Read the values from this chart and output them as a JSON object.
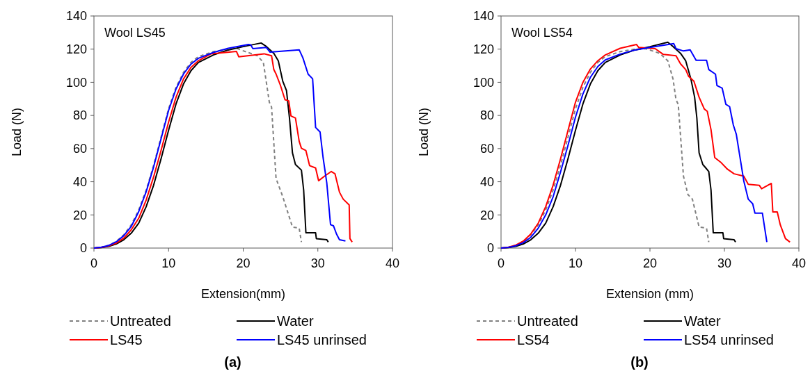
{
  "chart_data": [
    {
      "type": "line",
      "title": "Wool LS45",
      "xlabel": "Extension(mm)",
      "ylabel": "Load (N)",
      "xlim": [
        0,
        40
      ],
      "xticks": [
        0,
        10,
        20,
        30,
        40
      ],
      "ylim": [
        0,
        140
      ],
      "yticks": [
        0,
        20,
        40,
        60,
        80,
        100,
        120,
        140
      ],
      "grid": false,
      "legend": "bottom",
      "annotations": [
        "(a)"
      ],
      "series": [
        {
          "name": "Untreated",
          "color": "#808080",
          "line_style": "dashed",
          "x": [
            0,
            1,
            2,
            3,
            4,
            5,
            6,
            7,
            8,
            9,
            10,
            11,
            12,
            13,
            14,
            16,
            18,
            19.1,
            20,
            21.9,
            22.7,
            23.5,
            23.8,
            24.4,
            25.3,
            26.6,
            27.5,
            27.8
          ],
          "values": [
            0,
            0.5,
            1.7,
            4,
            8,
            14,
            23,
            35,
            50,
            67,
            84,
            97,
            106,
            112,
            115.5,
            118.5,
            120,
            120.5,
            119,
            116,
            112,
            88,
            85,
            42,
            31,
            12.7,
            12,
            3.6
          ]
        },
        {
          "name": "Water",
          "color": "#000000",
          "line_style": "solid",
          "x": [
            0,
            1,
            2,
            3,
            4,
            5,
            6,
            7,
            8,
            9,
            10,
            11,
            12,
            13,
            14,
            16,
            18,
            20,
            22.4,
            23.1,
            24.1,
            24.7,
            25.3,
            25.8,
            26.2,
            26.6,
            27,
            27.8,
            28.1,
            28.4,
            29.7,
            29.8,
            31.2,
            31.4
          ],
          "values": [
            0,
            0.3,
            1,
            2.5,
            5,
            9,
            15,
            25,
            38,
            54,
            71,
            87,
            99,
            107,
            112,
            116.5,
            119.5,
            121.5,
            123.7,
            121.6,
            117.5,
            113,
            100.7,
            95,
            78.4,
            57.4,
            50.4,
            47,
            35,
            9.2,
            9.2,
            5.7,
            5,
            3.6
          ]
        },
        {
          "name": "LS45",
          "color": "#ff0000",
          "line_style": "solid",
          "x": [
            0,
            1,
            2,
            3,
            4,
            5,
            6,
            7,
            8,
            9,
            10,
            11,
            12,
            13,
            14,
            15.7,
            19.1,
            19.4,
            22.8,
            23.8,
            24.1,
            24.4,
            25,
            25.6,
            26.1,
            26.4,
            27,
            27.5,
            27.8,
            28.4,
            28.9,
            29.7,
            30.1,
            30.9,
            31.8,
            32.3,
            32.9,
            33.4,
            34.2,
            34.3,
            34.6
          ],
          "values": [
            0,
            0.4,
            1.3,
            3,
            6,
            11,
            18,
            29,
            43,
            59,
            76,
            91,
            102,
            109,
            113,
            117.2,
            118.6,
            115.4,
            117.2,
            116,
            107.7,
            105,
            98,
            89.5,
            88.8,
            79.7,
            78.4,
            64.4,
            60.2,
            58.8,
            49.7,
            48.3,
            40.6,
            43.4,
            46.2,
            44.8,
            33.7,
            29.5,
            26,
            5.7,
            3.6
          ]
        },
        {
          "name": "LS45 unrinsed",
          "color": "#0000ff",
          "line_style": "solid",
          "x": [
            0,
            1,
            2,
            3,
            4,
            5,
            6,
            7,
            8,
            9,
            10,
            11,
            12,
            13,
            14,
            16,
            18,
            20.7,
            21,
            21.3,
            23.1,
            23.6,
            27.5,
            28,
            28.7,
            29.3,
            29.7,
            30.3,
            30.7,
            31.2,
            31.7,
            32.1,
            32.5,
            32.9,
            33.7
          ],
          "values": [
            0,
            0.5,
            1.6,
            3.8,
            7.5,
            13,
            22,
            34,
            49,
            66,
            83,
            96,
            105,
            111,
            114.5,
            118,
            120.5,
            122.8,
            122.6,
            120.3,
            121,
            118.2,
            119.6,
            114.7,
            104.9,
            102.1,
            72.8,
            70,
            54.7,
            39.2,
            14.1,
            13.4,
            8.5,
            5,
            4.3
          ]
        }
      ]
    },
    {
      "type": "line",
      "title": "Wool LS54",
      "xlabel": "Extension (mm)",
      "ylabel": "Load (N)",
      "xlim": [
        0,
        40
      ],
      "xticks": [
        0,
        10,
        20,
        30,
        40
      ],
      "ylim": [
        0,
        140
      ],
      "yticks": [
        0,
        20,
        40,
        60,
        80,
        100,
        120,
        140
      ],
      "grid": false,
      "legend": "bottom",
      "annotations": [
        "(b)"
      ],
      "series": [
        {
          "name": "Untreated",
          "color": "#808080",
          "line_style": "dashed",
          "x": [
            0,
            1,
            2,
            3,
            4,
            5,
            6,
            7,
            8,
            9,
            10,
            11,
            12,
            13,
            14,
            16,
            18,
            19.5,
            21.3,
            22.4,
            23.1,
            23.5,
            23.8,
            24.5,
            25.1,
            25.7,
            26.6,
            27.6,
            27.9
          ],
          "values": [
            0,
            0.5,
            1.7,
            4,
            8,
            14,
            23,
            35,
            50,
            67,
            84,
            97,
            106,
            112,
            115.5,
            118.5,
            120,
            120.2,
            117.5,
            113,
            102,
            89.5,
            86.7,
            43.4,
            32.3,
            29.5,
            12.7,
            12,
            3.6
          ]
        },
        {
          "name": "Water",
          "color": "#000000",
          "line_style": "solid",
          "x": [
            0,
            1,
            2,
            3,
            4,
            5,
            6,
            7,
            8,
            9,
            10,
            11,
            12,
            13,
            14,
            16,
            18,
            20,
            22.4,
            23.1,
            24.1,
            24.8,
            25.5,
            26,
            26.3,
            26.6,
            27.1,
            27.9,
            28.2,
            28.5,
            29.8,
            29.9,
            31.3,
            31.5
          ],
          "values": [
            0,
            0.3,
            1,
            2.5,
            5,
            9,
            15,
            25,
            38,
            54,
            71,
            87,
            99,
            107,
            112,
            116.5,
            119.5,
            121.5,
            124.2,
            121.6,
            117.5,
            113,
            102,
            91,
            78.4,
            57.4,
            50.4,
            46.2,
            35,
            9.2,
            9.2,
            5.7,
            5,
            3.6
          ]
        },
        {
          "name": "LS54",
          "color": "#ff0000",
          "line_style": "solid",
          "x": [
            0,
            1,
            2,
            3,
            4,
            5,
            6,
            7,
            8,
            9,
            10,
            11,
            12,
            13,
            14,
            16,
            18.2,
            18.5,
            20.7,
            21.8,
            23.5,
            24.1,
            24.8,
            25.2,
            25.9,
            26.6,
            27.3,
            27.7,
            28.2,
            28.7,
            29.5,
            30.4,
            31.3,
            32.6,
            33.2,
            34.7,
            35,
            36.3,
            36.5,
            37.1,
            37.5,
            38.2,
            38.8
          ],
          "values": [
            0,
            0.5,
            1.8,
            4.2,
            8.5,
            15,
            25,
            38,
            54,
            71,
            88,
            100,
            108,
            113,
            116.5,
            120.5,
            122.8,
            121,
            120.3,
            116.8,
            116,
            111.2,
            107.7,
            103.5,
            100.7,
            91,
            83.9,
            82.5,
            71.4,
            54.6,
            51.8,
            47.6,
            44.8,
            43.4,
            38.5,
            37.8,
            35.8,
            39,
            21.8,
            21.8,
            14.1,
            5.7,
            3.6
          ]
        },
        {
          "name": "LS54 unrinsed",
          "color": "#0000ff",
          "line_style": "solid",
          "x": [
            0,
            1,
            2,
            3,
            4,
            5,
            6,
            7,
            8,
            9,
            10,
            11,
            12,
            13,
            14,
            16,
            18,
            20,
            23.2,
            23.5,
            24.5,
            25.4,
            26.2,
            27.6,
            27.9,
            28.8,
            29,
            29.7,
            30.2,
            30.7,
            31.2,
            31.6,
            32,
            32.6,
            33.2,
            33.8,
            34.1,
            35.1,
            35.7
          ],
          "values": [
            0,
            0.4,
            1.4,
            3.3,
            6.5,
            12,
            20,
            31,
            46,
            62,
            79,
            93,
            103,
            109.5,
            113.5,
            117,
            119.5,
            121,
            123.3,
            120.3,
            118.9,
            119.6,
            113.3,
            113.3,
            107.7,
            104.9,
            98,
            96.5,
            86.7,
            85.3,
            74.2,
            68.6,
            57.4,
            40.6,
            29.5,
            26.7,
            21.1,
            21.1,
            3.6
          ]
        }
      ]
    }
  ]
}
